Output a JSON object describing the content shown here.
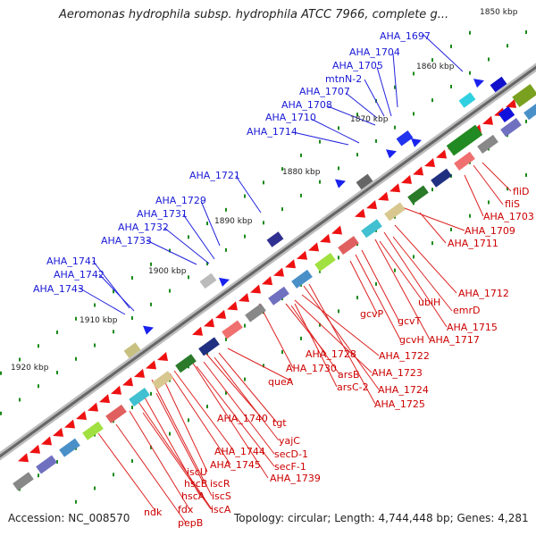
{
  "title": "Aeromonas hydrophila subsp. hydrophila ATCC 7966, complete g...",
  "footer": {
    "accession": "Accession: NC_008570",
    "summary": "Topology: circular; Length: 4,744,448 bp; Genes: 4,281"
  },
  "kbp_labels": [
    "1850 kbp",
    "1860 kbp",
    "1870 kbp",
    "1880 kbp",
    "1890 kbp",
    "1900 kbp",
    "1910 kbp",
    "1920 kbp"
  ],
  "blue_labels": [
    "AHA_1697",
    "AHA_1704",
    "AHA_1705",
    "mtnN-2",
    "AHA_1707",
    "AHA_1708",
    "AHA_1710",
    "AHA_1714",
    "AHA_1721",
    "AHA_1729",
    "AHA_1731",
    "AHA_1732",
    "AHA_1733",
    "AHA_1741",
    "AHA_1742",
    "AHA_1743"
  ],
  "red_labels": [
    "fliD",
    "fliS",
    "AHA_1703",
    "AHA_1709",
    "AHA_1711",
    "AHA_1712",
    "emrD",
    "ubiH",
    "AHA_1715",
    "gcvP",
    "gcvT",
    "gcvH",
    "AHA_1717",
    "AHA_1722",
    "AHA_1723",
    "AHA_1724",
    "AHA_1725",
    "AHA_1728",
    "arsB",
    "arsC-2",
    "AHA_1730",
    "queA",
    "tgt",
    "AHA_1740",
    "yajC",
    "secD-1",
    "secF-1",
    "AHA_1739",
    "AHA_1744",
    "AHA_1745",
    "iscU",
    "hscB",
    "iscR",
    "hscA",
    "iscS",
    "fdx",
    "iscA",
    "ndk",
    "pepB"
  ]
}
